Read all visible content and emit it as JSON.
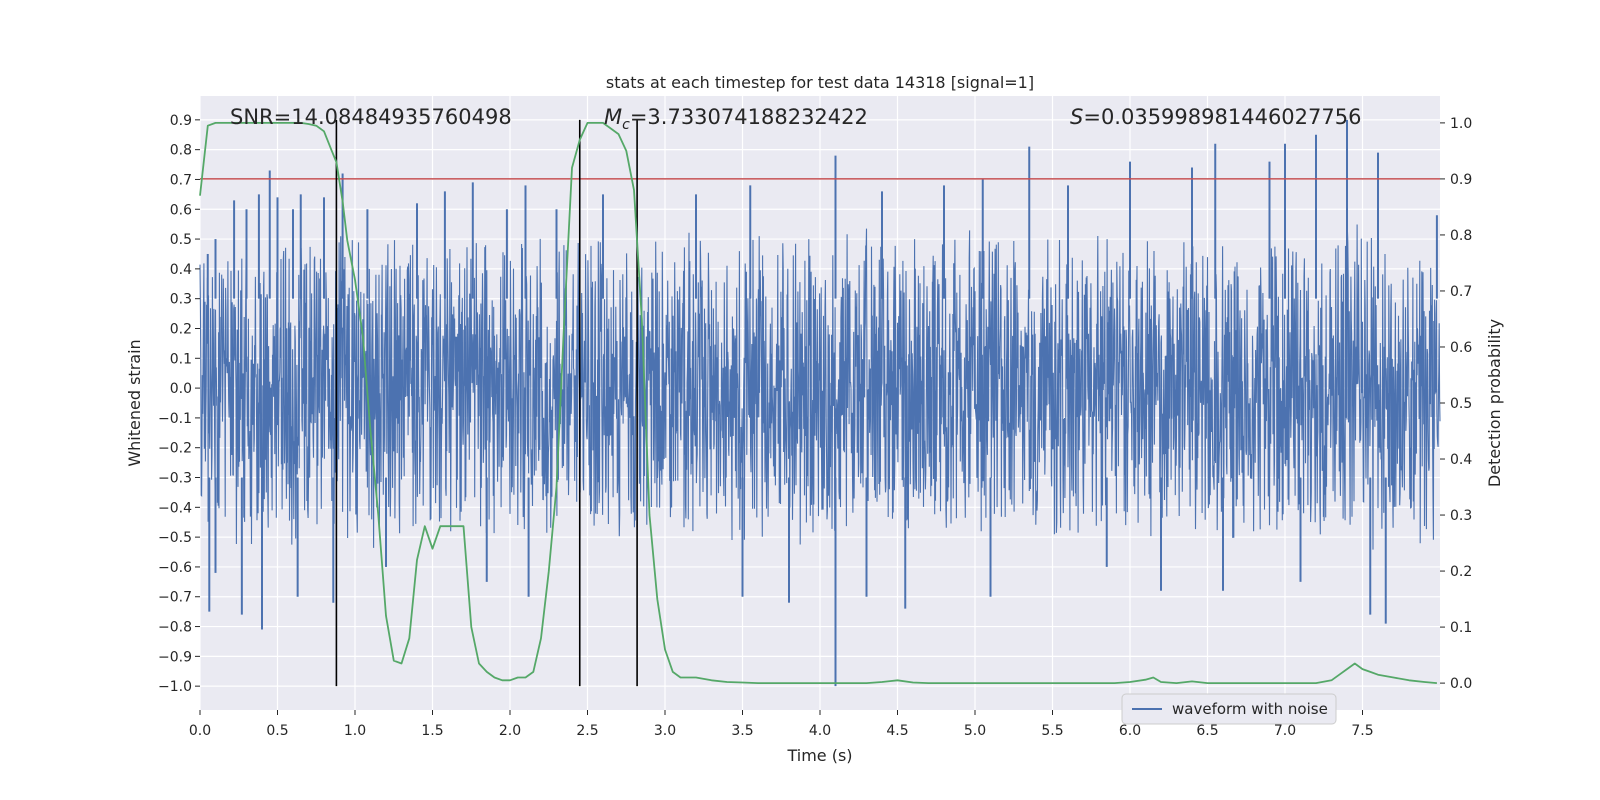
{
  "chart_data": {
    "type": "line",
    "title": "stats at each timestep for test data 14318 [signal=1]",
    "xlabel": "Time (s)",
    "ylabel_left": "Whitened strain",
    "ylabel_right": "Detection probability",
    "xlim": [
      0.0,
      8.0
    ],
    "ylim_left": [
      -1.08,
      0.98
    ],
    "ylim_right": [
      -0.048,
      1.048
    ],
    "xticks": [
      0.0,
      0.5,
      1.0,
      1.5,
      2.0,
      2.5,
      3.0,
      3.5,
      4.0,
      4.5,
      5.0,
      5.5,
      6.0,
      6.5,
      7.0,
      7.5
    ],
    "xtick_labels": [
      "0.0",
      "0.5",
      "1.0",
      "1.5",
      "2.0",
      "2.5",
      "3.0",
      "3.5",
      "4.0",
      "4.5",
      "5.0",
      "5.5",
      "6.0",
      "6.5",
      "7.0",
      "7.5"
    ],
    "yticks_left": [
      0.9,
      0.8,
      0.7,
      0.6,
      0.5,
      0.4,
      0.3,
      0.2,
      0.1,
      0.0,
      -0.1,
      -0.2,
      -0.3,
      -0.4,
      -0.5,
      -0.6,
      -0.7,
      -0.8,
      -0.9,
      -1.0
    ],
    "ytick_labels_left": [
      "0.9",
      "0.8",
      "0.7",
      "0.6",
      "0.5",
      "0.4",
      "0.3",
      "0.2",
      "0.1",
      "0.0",
      "−0.1",
      "−0.2",
      "−0.3",
      "−0.4",
      "−0.5",
      "−0.6",
      "−0.7",
      "−0.8",
      "−0.9",
      "−1.0"
    ],
    "yticks_right": [
      1.0,
      0.9,
      0.8,
      0.7,
      0.6,
      0.5,
      0.4,
      0.3,
      0.2,
      0.1,
      0.0
    ],
    "ytick_labels_right": [
      "1.0",
      "0.9",
      "0.8",
      "0.7",
      "0.6",
      "0.5",
      "0.4",
      "0.3",
      "0.2",
      "0.1",
      "0.0"
    ],
    "grid": true,
    "annotations": {
      "snr": "SNR=14.08484935760498",
      "mc_prefix": "M",
      "mc_sub": "c",
      "mc_value": "=3.733074188232422",
      "s_prefix": "S",
      "s_value": "=0.035998981446027756"
    },
    "legend": {
      "placement": "lower-right",
      "entries": [
        "waveform with noise"
      ]
    },
    "threshold_line": {
      "axis": "right",
      "y": 0.9,
      "color": "#c44e52"
    },
    "vertical_lines": [
      0.88,
      2.45,
      2.82
    ],
    "vertical_line_range_left": [
      -1.0,
      0.9
    ],
    "waveform_series": {
      "name": "waveform with noise",
      "color": "#4c72b0",
      "axis": "left",
      "peaks_positive": [
        [
          0.05,
          0.45
        ],
        [
          0.1,
          0.5
        ],
        [
          0.22,
          0.63
        ],
        [
          0.3,
          0.6
        ],
        [
          0.38,
          0.65
        ],
        [
          0.45,
          0.73
        ],
        [
          0.5,
          0.64
        ],
        [
          0.6,
          0.6
        ],
        [
          0.65,
          0.65
        ],
        [
          0.8,
          0.64
        ],
        [
          0.92,
          0.72
        ],
        [
          1.08,
          0.6
        ],
        [
          1.4,
          0.62
        ],
        [
          1.58,
          0.66
        ],
        [
          1.76,
          0.69
        ],
        [
          1.98,
          0.6
        ],
        [
          2.1,
          0.68
        ],
        [
          2.3,
          0.6
        ],
        [
          2.6,
          0.65
        ],
        [
          3.2,
          0.65
        ],
        [
          3.55,
          0.68
        ],
        [
          4.1,
          0.78
        ],
        [
          4.4,
          0.66
        ],
        [
          4.8,
          0.68
        ],
        [
          5.05,
          0.7
        ],
        [
          5.35,
          0.81
        ],
        [
          5.6,
          0.68
        ],
        [
          6.0,
          0.76
        ],
        [
          6.4,
          0.74
        ],
        [
          6.55,
          0.82
        ],
        [
          6.9,
          0.76
        ],
        [
          7.0,
          0.82
        ],
        [
          7.2,
          0.85
        ],
        [
          7.4,
          0.9
        ],
        [
          7.6,
          0.79
        ],
        [
          7.98,
          0.58
        ]
      ],
      "peaks_negative": [
        [
          0.06,
          -0.75
        ],
        [
          0.1,
          -0.62
        ],
        [
          0.27,
          -0.76
        ],
        [
          0.4,
          -0.81
        ],
        [
          0.63,
          -0.7
        ],
        [
          0.86,
          -0.72
        ],
        [
          1.2,
          -0.6
        ],
        [
          1.85,
          -0.65
        ],
        [
          2.12,
          -0.7
        ],
        [
          3.5,
          -0.7
        ],
        [
          3.8,
          -0.72
        ],
        [
          4.1,
          -1.0
        ],
        [
          4.3,
          -0.7
        ],
        [
          4.55,
          -0.74
        ],
        [
          5.1,
          -0.7
        ],
        [
          5.85,
          -0.6
        ],
        [
          6.2,
          -0.68
        ],
        [
          6.6,
          -0.68
        ],
        [
          7.1,
          -0.65
        ],
        [
          7.55,
          -0.76
        ],
        [
          7.65,
          -0.79
        ]
      ]
    },
    "probability_series": {
      "color": "#55a868",
      "axis": "right",
      "x": [
        0.0,
        0.05,
        0.1,
        0.2,
        0.3,
        0.4,
        0.5,
        0.6,
        0.65,
        0.7,
        0.75,
        0.8,
        0.85,
        0.88,
        0.92,
        0.95,
        1.0,
        1.05,
        1.1,
        1.15,
        1.2,
        1.25,
        1.3,
        1.35,
        1.4,
        1.45,
        1.5,
        1.55,
        1.6,
        1.65,
        1.7,
        1.75,
        1.8,
        1.85,
        1.9,
        1.95,
        2.0,
        2.05,
        2.1,
        2.15,
        2.2,
        2.25,
        2.3,
        2.35,
        2.4,
        2.45,
        2.5,
        2.55,
        2.6,
        2.65,
        2.7,
        2.75,
        2.8,
        2.85,
        2.9,
        2.95,
        3.0,
        3.05,
        3.1,
        3.2,
        3.3,
        3.4,
        3.5,
        3.6,
        3.7,
        3.8,
        3.9,
        4.0,
        4.1,
        4.2,
        4.3,
        4.4,
        4.5,
        4.6,
        4.7,
        4.8,
        4.9,
        5.0,
        5.1,
        5.2,
        5.3,
        5.4,
        5.5,
        5.6,
        5.7,
        5.8,
        5.9,
        6.0,
        6.1,
        6.15,
        6.2,
        6.3,
        6.4,
        6.5,
        6.6,
        6.7,
        6.8,
        6.9,
        7.0,
        7.1,
        7.2,
        7.3,
        7.35,
        7.4,
        7.45,
        7.5,
        7.55,
        7.6,
        7.7,
        7.8,
        7.9,
        7.98
      ],
      "y": [
        0.87,
        0.995,
        1.0,
        1.0,
        1.0,
        1.0,
        1.0,
        1.0,
        1.0,
        0.998,
        0.995,
        0.985,
        0.95,
        0.93,
        0.86,
        0.79,
        0.72,
        0.62,
        0.45,
        0.3,
        0.12,
        0.04,
        0.035,
        0.08,
        0.22,
        0.28,
        0.24,
        0.28,
        0.28,
        0.28,
        0.28,
        0.1,
        0.035,
        0.02,
        0.01,
        0.005,
        0.005,
        0.01,
        0.01,
        0.02,
        0.08,
        0.2,
        0.35,
        0.65,
        0.92,
        0.97,
        1.0,
        1.0,
        1.0,
        0.99,
        0.98,
        0.95,
        0.88,
        0.65,
        0.3,
        0.15,
        0.06,
        0.02,
        0.01,
        0.01,
        0.005,
        0.002,
        0.001,
        0.0,
        0.0,
        0.0,
        0.0,
        0.0,
        0.0,
        0.0,
        0.0,
        0.002,
        0.005,
        0.001,
        0.0,
        0.0,
        0.0,
        0.0,
        0.0,
        0.0,
        0.0,
        0.0,
        0.0,
        0.0,
        0.0,
        0.0,
        0.0,
        0.002,
        0.006,
        0.01,
        0.002,
        0.0,
        0.003,
        0.0,
        0.0,
        0.0,
        0.0,
        0.0,
        0.0,
        0.0,
        0.0,
        0.005,
        0.015,
        0.025,
        0.035,
        0.025,
        0.02,
        0.015,
        0.01,
        0.005,
        0.002,
        0.0
      ]
    }
  }
}
